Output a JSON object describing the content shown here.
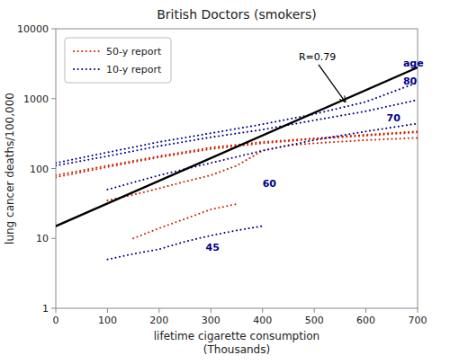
{
  "chart_data": {
    "type": "line",
    "title": "British Doctors (smokers)",
    "xlabel": "lifetime cigarette consumption\n(Thousands)",
    "ylabel": "lung cancer deaths/100,000",
    "log": "y",
    "xlim": [
      0,
      700
    ],
    "ylim": [
      1,
      10000
    ],
    "xticks": [
      0,
      100,
      200,
      300,
      400,
      500,
      600,
      700
    ],
    "yticks": [
      1,
      10,
      100,
      1000,
      10000
    ],
    "grid": false,
    "legend": "upper left",
    "series": [
      {
        "name": "50-y report",
        "color": "#cc2200",
        "line_style": "dotted",
        "lines": [
          {
            "x": [
              0,
              100,
              200,
              300,
              400,
              500,
              600,
              700
            ],
            "values": [
              80,
              110,
              150,
              200,
              240,
              270,
              305,
              340
            ]
          },
          {
            "x": [
              0,
              100,
              200,
              300,
              400,
              500,
              600,
              700
            ],
            "values": [
              75,
              105,
              145,
              190,
              230,
              265,
              295,
              330
            ]
          },
          {
            "x": [
              100,
              150,
              200,
              250,
              300,
              350,
              400,
              450,
              500,
              600,
              700
            ],
            "values": [
              35,
              42,
              52,
              65,
              80,
              110,
              180,
              215,
              230,
              255,
              275
            ]
          },
          {
            "x": [
              150,
              200,
              250,
              300,
              350
            ],
            "values": [
              10,
              14,
              19,
              26,
              31
            ]
          }
        ]
      },
      {
        "name": "10-y report",
        "color": "#00008B",
        "line_style": "dotted",
        "lines": [
          {
            "x": [
              0,
              100,
              200,
              300,
              400,
              500,
              600,
              700
            ],
            "values": [
              120,
              170,
              240,
              320,
              430,
              600,
              900,
              1700
            ]
          },
          {
            "x": [
              0,
              100,
              200,
              300,
              400,
              500,
              600,
              700
            ],
            "values": [
              110,
              150,
              210,
              280,
              360,
              490,
              660,
              960
            ]
          },
          {
            "x": [
              100,
              200,
              300,
              400,
              500,
              600,
              700
            ],
            "values": [
              50,
              80,
              120,
              180,
              255,
              340,
              440
            ]
          },
          {
            "x": [
              100,
              150,
              200,
              250,
              300,
              350,
              400
            ],
            "values": [
              5,
              6,
              7,
              9,
              11,
              13,
              15
            ]
          }
        ]
      },
      {
        "color": "black",
        "line_style": "solid",
        "x": [
          0,
          700
        ],
        "values": [
          15,
          2800
        ]
      }
    ],
    "annotations": [
      {
        "text": "80",
        "x": 672,
        "y": 1800,
        "color": "#00008B"
      },
      {
        "text": "70",
        "x": 640,
        "y": 540,
        "color": "#00008B"
      },
      {
        "text": "60",
        "x": 400,
        "y": 62,
        "color": "#00008B"
      },
      {
        "text": "45",
        "x": 290,
        "y": 7.5,
        "color": "#00008B"
      },
      {
        "text": "age",
        "x": 672,
        "y": 3200,
        "color": "#00008B"
      },
      {
        "text": "R=0.79",
        "x": 470,
        "y": 4000,
        "arrow_x": 560,
        "arrow_y": 900,
        "color": "black"
      }
    ]
  }
}
